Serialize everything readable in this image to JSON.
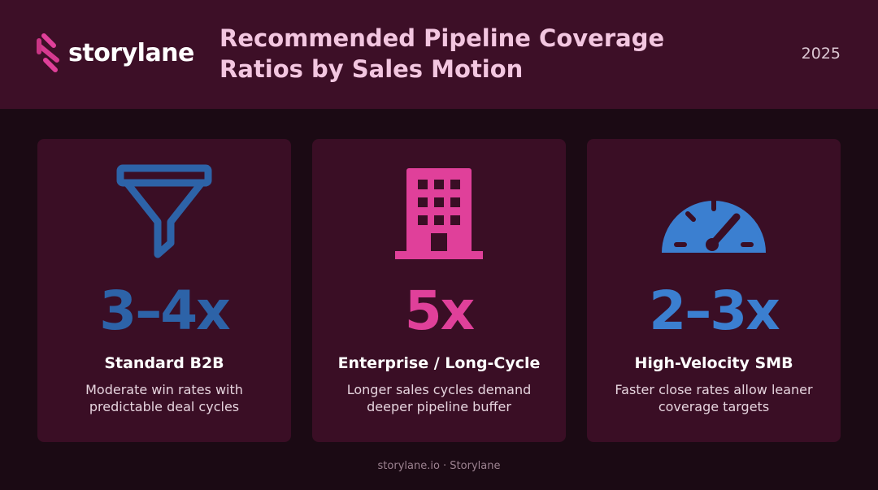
{
  "header": {
    "brand": "storylane",
    "title": "Recommended Pipeline Coverage Ratios by Sales Motion",
    "year": "2025"
  },
  "colors": {
    "brand_pink": "#e0409a",
    "blue_dark": "#2d63a8",
    "blue_light": "#3b7fd0",
    "header_bg": "#3d0f27",
    "card_bg": "#3a0e25"
  },
  "cards": [
    {
      "icon": "funnel-icon",
      "ratio": "3–4x",
      "title": "Standard B2B",
      "description": "Moderate win rates with predictable deal cycles"
    },
    {
      "icon": "building-icon",
      "ratio": "5x",
      "title": "Enterprise / Long-Cycle",
      "description": "Longer sales cycles demand deeper pipeline buffer"
    },
    {
      "icon": "speedometer-icon",
      "ratio": "2–3x",
      "title": "High-Velocity SMB",
      "description": "Faster close rates allow leaner coverage targets"
    }
  ],
  "footer": {
    "text": "storylane.io · Storylane"
  }
}
